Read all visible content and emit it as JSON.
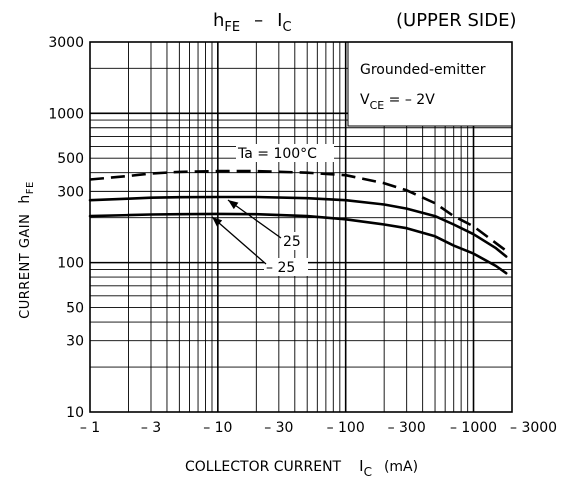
{
  "chart_data": {
    "type": "line",
    "title": {
      "main": "h",
      "main_sub": "FE",
      "sep": "–",
      "var": "I",
      "var_sub": "C",
      "tag": "(UPPER SIDE)"
    },
    "xlabel": {
      "main": "COLLECTOR CURRENT",
      "var": "I",
      "var_sub": "C",
      "unit": "(mA)"
    },
    "ylabel": {
      "main": "CURRENT GAIN",
      "var": "h",
      "var_sub": "FE"
    },
    "x_scale": "log",
    "y_scale": "log",
    "x_abs_range": [
      1,
      2000
    ],
    "y_range": [
      10,
      3000
    ],
    "grid": true,
    "x_tick_values": [
      1,
      3,
      10,
      30,
      100,
      300,
      1000,
      3000
    ],
    "x_ticks": [
      "– 1",
      "– 3",
      "– 10",
      "– 30",
      "– 100",
      "– 300",
      "– 1000",
      "– 3000"
    ],
    "y_tick_values": [
      10,
      30,
      50,
      100,
      300,
      500,
      1000,
      3000
    ],
    "y_ticks": [
      "10",
      "30",
      "50",
      "100",
      "300",
      "500",
      "1000",
      "3000"
    ],
    "condition": {
      "line1": "Grounded-emitter",
      "vce_var": "V",
      "vce_sub": "CE",
      "vce_rest": " = – 2V"
    },
    "series": [
      {
        "name": "Ta = 100°C",
        "style": "dashed",
        "x": [
          1,
          2,
          3,
          5,
          10,
          20,
          50,
          100,
          200,
          300,
          500,
          700,
          1000,
          1500,
          1800
        ],
        "y": [
          360,
          380,
          395,
          405,
          410,
          410,
          400,
          385,
          340,
          305,
          250,
          205,
          175,
          135,
          120
        ]
      },
      {
        "name": "25",
        "style": "solid",
        "x": [
          1,
          2,
          3,
          5,
          10,
          20,
          50,
          100,
          200,
          300,
          500,
          700,
          1000,
          1500,
          1800
        ],
        "y": [
          262,
          268,
          272,
          274,
          275,
          275,
          270,
          262,
          245,
          230,
          205,
          180,
          155,
          125,
          110
        ]
      },
      {
        "name": "– 25",
        "style": "solid",
        "x": [
          1,
          2,
          3,
          5,
          10,
          20,
          50,
          100,
          200,
          300,
          500,
          700,
          1000,
          1500,
          1800
        ],
        "y": [
          205,
          208,
          210,
          211,
          212,
          211,
          205,
          195,
          180,
          170,
          150,
          130,
          115,
          95,
          85
        ]
      }
    ]
  }
}
